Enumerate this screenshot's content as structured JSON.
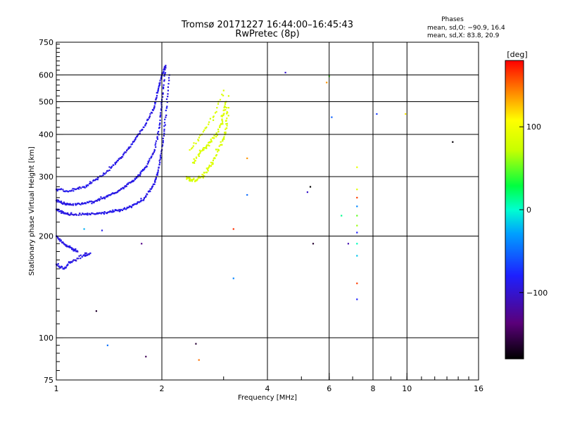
{
  "chart_data": {
    "type": "scatter",
    "title": "Tromsø 20171227 16:44:00–16:45:43",
    "subtitle": "RwPretec (8p)",
    "xlabel": "Frequency [MHz]",
    "ylabel": "Stationary phase Virtual Height [km]",
    "x_scale": "log",
    "y_scale": "log",
    "xlim": [
      1,
      16
    ],
    "ylim": [
      75,
      750
    ],
    "x_ticks": [
      1,
      2,
      4,
      6,
      8,
      10,
      16
    ],
    "x_tick_labels": [
      "1",
      "2",
      "4",
      "6",
      "8",
      "10",
      "16"
    ],
    "x_gridlines": [
      2,
      4,
      6,
      8,
      10
    ],
    "y_ticks": [
      75,
      100,
      200,
      300,
      400,
      500,
      600,
      750
    ],
    "y_tick_labels": [
      "75",
      "100",
      "200",
      "300",
      "400",
      "500",
      "600",
      "750"
    ],
    "y_gridlines": [
      100,
      200,
      300,
      400,
      500,
      600
    ],
    "grid": true,
    "phase_stats": {
      "header": "Phases",
      "line_o": "mean, sd,O: −90.9, 16.4",
      "line_x": "mean, sd,X:  83.8, 20.9"
    },
    "colorbar": {
      "label": "[deg]",
      "range": [
        -180,
        180
      ],
      "ticks": [
        -100,
        0,
        100
      ],
      "tick_labels": [
        "−100",
        "0",
        "100"
      ],
      "colormap": "rainbow (black → purple → blue → cyan → green → yellow → red)"
    },
    "series": [
      {
        "trace": "o-mode",
        "phase_mean": -90.9,
        "phase_sd": 16.4,
        "x": [
          1.0,
          1.05,
          1.1,
          1.2,
          1.3,
          1.4,
          1.5,
          1.6,
          1.7,
          1.8,
          1.9,
          1.95,
          2.0,
          2.05,
          2.1,
          1.0,
          1.05,
          1.1,
          1.2,
          1.3,
          1.4,
          1.5,
          1.6,
          1.7,
          1.8,
          1.9,
          1.97,
          2.0,
          2.05,
          1.0,
          1.1,
          1.2,
          1.3,
          1.4,
          1.5,
          1.6,
          1.7,
          1.8,
          1.9,
          1.95,
          2.0,
          2.05,
          1.0,
          1.05,
          1.1,
          1.15,
          1.0,
          1.05,
          1.1,
          1.2,
          1.25
        ],
        "y": [
          240,
          234,
          232,
          232,
          233,
          235,
          238,
          243,
          250,
          262,
          285,
          310,
          360,
          450,
          600,
          255,
          250,
          248,
          250,
          255,
          262,
          272,
          285,
          300,
          320,
          355,
          420,
          500,
          630,
          275,
          272,
          280,
          295,
          312,
          335,
          362,
          395,
          430,
          480,
          540,
          600,
          640,
          200,
          190,
          185,
          180,
          165,
          160,
          168,
          176,
          178
        ]
      },
      {
        "trace": "x-mode",
        "phase_mean": 83.8,
        "phase_sd": 20.9,
        "x": [
          2.35,
          2.4,
          2.5,
          2.6,
          2.7,
          2.8,
          2.9,
          3.0,
          3.05,
          3.1,
          3.1,
          2.45,
          2.55,
          2.65,
          2.75,
          2.85,
          2.95,
          3.0,
          3.05,
          2.4,
          2.6,
          2.8,
          3.0
        ],
        "y": [
          300,
          295,
          292,
          300,
          315,
          335,
          360,
          390,
          430,
          480,
          520,
          330,
          350,
          365,
          380,
          400,
          430,
          460,
          500,
          360,
          400,
          450,
          540
        ]
      },
      {
        "trace": "scattered",
        "x": [
          7.2,
          7.2,
          7.2,
          7.2,
          7.2,
          7.2,
          7.2,
          7.2,
          7.2,
          7.2,
          7.2,
          6.0,
          5.9,
          6.1,
          5.3,
          5.2,
          5.4,
          4.5,
          3.5,
          3.5,
          3.2,
          3.2,
          1.4,
          1.8,
          2.5,
          2.55,
          1.3,
          8.2,
          9.9,
          13.5,
          6.5,
          6.8,
          1.75,
          1.35,
          1.2
        ],
        "y": [
          320,
          275,
          260,
          245,
          230,
          215,
          205,
          190,
          175,
          145,
          130,
          595,
          570,
          450,
          280,
          270,
          190,
          610,
          340,
          265,
          210,
          150,
          95,
          88,
          96,
          86,
          120,
          460,
          460,
          380,
          230,
          190,
          190,
          208,
          210
        ]
      }
    ]
  }
}
